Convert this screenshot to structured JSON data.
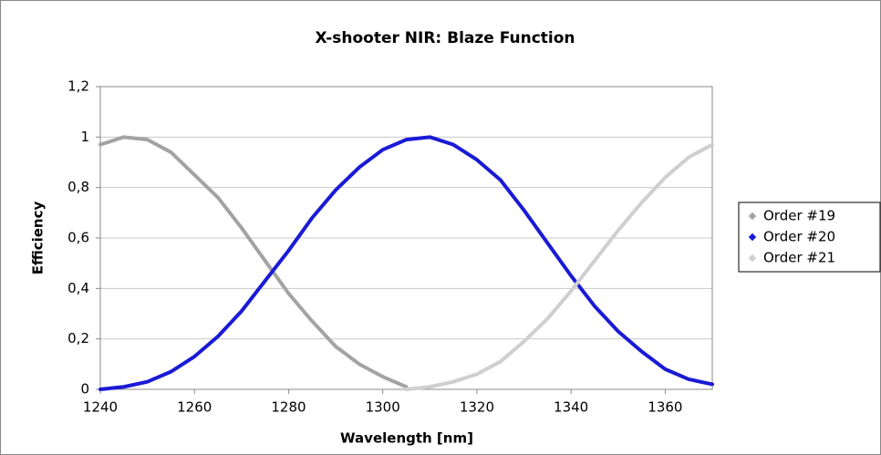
{
  "chart_data": {
    "type": "line",
    "title": "X-shooter NIR: Blaze Function",
    "x_label": "Wavelength [nm]",
    "y_label": "Efficiency",
    "x": [
      1240,
      1245,
      1250,
      1255,
      1260,
      1265,
      1270,
      1275,
      1280,
      1285,
      1290,
      1295,
      1300,
      1305,
      1310,
      1315,
      1320,
      1325,
      1330,
      1335,
      1340,
      1345,
      1350,
      1355,
      1360,
      1365,
      1370
    ],
    "series": [
      {
        "name": "Order #19",
        "color": "#a3a3a3",
        "values": [
          0.97,
          1.0,
          0.99,
          0.94,
          0.85,
          0.76,
          0.64,
          0.51,
          0.38,
          0.27,
          0.17,
          0.1,
          0.05,
          0.01,
          null,
          null,
          null,
          null,
          null,
          null,
          null,
          null,
          null,
          null,
          null,
          null,
          null
        ]
      },
      {
        "name": "Order #20",
        "color": "#1a1ad6",
        "values": [
          0,
          0.01,
          0.03,
          0.07,
          0.13,
          0.21,
          0.31,
          0.43,
          0.55,
          0.68,
          0.79,
          0.88,
          0.95,
          0.99,
          1.0,
          0.97,
          0.91,
          0.83,
          0.71,
          0.58,
          0.45,
          0.33,
          0.23,
          0.15,
          0.08,
          0.04,
          0.02
        ]
      },
      {
        "name": "Order #21",
        "color": "#cfcfcf",
        "values": [
          null,
          null,
          null,
          null,
          null,
          null,
          null,
          null,
          null,
          null,
          null,
          null,
          null,
          0,
          0.01,
          0.03,
          0.06,
          0.11,
          0.19,
          0.28,
          0.39,
          0.51,
          0.63,
          0.74,
          0.84,
          0.92,
          0.97
        ]
      }
    ],
    "xlim": [
      1240,
      1370
    ],
    "xticks": [
      1240,
      1260,
      1280,
      1300,
      1320,
      1340,
      1360
    ],
    "ylim": [
      0,
      1.2
    ],
    "yticks": [
      0,
      {
        "value": 0.2,
        "label": "0,2"
      },
      {
        "value": 0.4,
        "label": "0,4"
      },
      {
        "value": 0.6,
        "label": "0,6"
      },
      {
        "value": 0.8,
        "label": "0,8"
      },
      1,
      {
        "value": 1.2,
        "label": "1,2"
      }
    ],
    "grid": true,
    "legend": "right"
  }
}
